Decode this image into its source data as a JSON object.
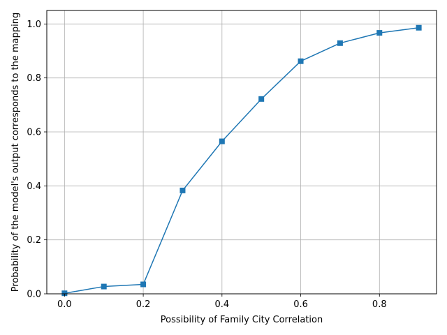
{
  "chart_data": {
    "type": "line",
    "xlabel": "Possibility of Family City Correlation",
    "ylabel": "Probability of the model's output corresponds to the mapping",
    "xlim": [
      -0.045,
      0.945
    ],
    "ylim": [
      0.0,
      1.05
    ],
    "x_ticks": [
      0.0,
      0.2,
      0.4,
      0.6,
      0.8
    ],
    "x_tick_labels": [
      "0.0",
      "0.2",
      "0.4",
      "0.6",
      "0.8"
    ],
    "y_ticks": [
      0.0,
      0.2,
      0.4,
      0.6,
      0.8,
      1.0
    ],
    "y_tick_labels": [
      "0.0",
      "0.2",
      "0.4",
      "0.6",
      "0.8",
      "1.0"
    ],
    "grid": true,
    "series": [
      {
        "marker": "square",
        "color": "#1f77b4",
        "x": [
          0.0,
          0.1,
          0.2,
          0.3,
          0.4,
          0.5,
          0.6,
          0.7,
          0.8,
          0.9
        ],
        "y": [
          0.002,
          0.027,
          0.035,
          0.383,
          0.565,
          0.722,
          0.862,
          0.929,
          0.967,
          0.986
        ]
      }
    ]
  }
}
